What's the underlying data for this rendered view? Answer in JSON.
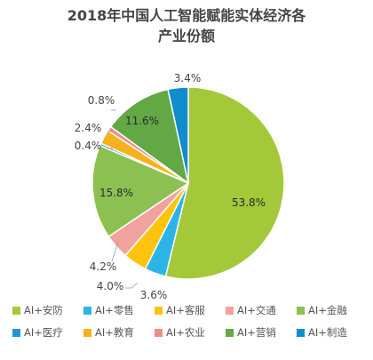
{
  "chart_data": {
    "type": "pie",
    "title": "2018年中国人工智能赋能实体经济各产业份额",
    "title_lines": [
      "2018年中国人工智能赋能实体经济各",
      "产业份额"
    ],
    "slices": [
      {
        "label": "AI+安防",
        "value": 53.8,
        "display": "53.8%",
        "color": "#a3c93a"
      },
      {
        "label": "AI+零售",
        "value": 3.6,
        "display": "3.6%",
        "color": "#2ab5e6"
      },
      {
        "label": "AI+客服",
        "value": 4.0,
        "display": "4.0%",
        "color": "#fec40d"
      },
      {
        "label": "AI+交通",
        "value": 4.2,
        "display": "4.2%",
        "color": "#f2a29e"
      },
      {
        "label": "AI+金融",
        "value": 15.8,
        "display": "15.8%",
        "color": "#8cc152"
      },
      {
        "label": "AI+医疗",
        "value": 0.4,
        "display": "0.4%",
        "color": "#1d9ad6"
      },
      {
        "label": "AI+教育",
        "value": 2.4,
        "display": "2.4%",
        "color": "#f7b11c"
      },
      {
        "label": "AI+农业",
        "value": 0.8,
        "display": "0.8%",
        "color": "#ee8e8a"
      },
      {
        "label": "AI+营销",
        "value": 11.6,
        "display": "11.6%",
        "color": "#62a844"
      },
      {
        "label": "AI+制造",
        "value": 3.4,
        "display": "3.4%",
        "color": "#0f8dcc"
      }
    ],
    "legend_position": "bottom",
    "legend_rows": [
      [
        "AI+安防",
        "AI+零售",
        "AI+客服",
        "AI+交通",
        "AI+金融"
      ],
      [
        "AI+医疗",
        "AI+教育",
        "AI+农业",
        "AI+营销",
        "AI+制造"
      ]
    ]
  }
}
